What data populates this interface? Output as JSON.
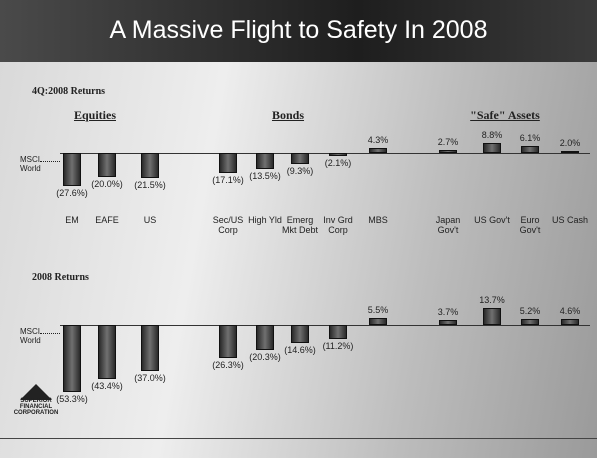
{
  "title": "A Massive Flight to Safety In 2008",
  "groups": [
    "Equities",
    "Bonds",
    "\"Safe\" Assets"
  ],
  "logo": "SUPERIOR FINANCIAL CORPORATION",
  "chart_data": [
    {
      "type": "bar",
      "title": "4Q:2008 Returns",
      "annotation": "MSCI World",
      "categories": [
        "EM",
        "EAFE",
        "US",
        "Sec/US Corp",
        "High Yld",
        "Emerg Mkt Debt",
        "Inv Grd Corp",
        "MBS",
        "Japan Gov't",
        "US Gov't",
        "Euro Gov't",
        "US Cash"
      ],
      "values": [
        -27.6,
        -20.0,
        -21.5,
        -17.1,
        -13.5,
        -9.3,
        -2.1,
        4.3,
        2.7,
        8.8,
        6.1,
        2.0
      ],
      "value_labels": [
        "(27.6%)",
        "(20.0%)",
        "(21.5%)",
        "(17.1%)",
        "(13.5%)",
        "(9.3%)",
        "(2.1%)",
        "4.3%",
        "2.7%",
        "8.8%",
        "6.1%",
        "2.0%"
      ],
      "ylim": [
        -40,
        20
      ]
    },
    {
      "type": "bar",
      "title": "2008 Returns",
      "annotation": "MSCI World",
      "categories": [
        null,
        null,
        null,
        null,
        null,
        null,
        null,
        null,
        null,
        null,
        null,
        null
      ],
      "values": [
        -53.3,
        -43.4,
        -37.0,
        -26.3,
        -20.3,
        -14.6,
        -11.2,
        5.5,
        3.7,
        13.7,
        5.2,
        4.6
      ],
      "value_labels": [
        "(53.3%)",
        "(43.4%)",
        "(37.0%)",
        "(26.3%)",
        "(20.3%)",
        "(14.6%)",
        "(11.2%)",
        "5.5%",
        "3.7%",
        "13.7%",
        "5.2%",
        "4.6%"
      ],
      "ylim": [
        -60,
        20
      ]
    }
  ]
}
